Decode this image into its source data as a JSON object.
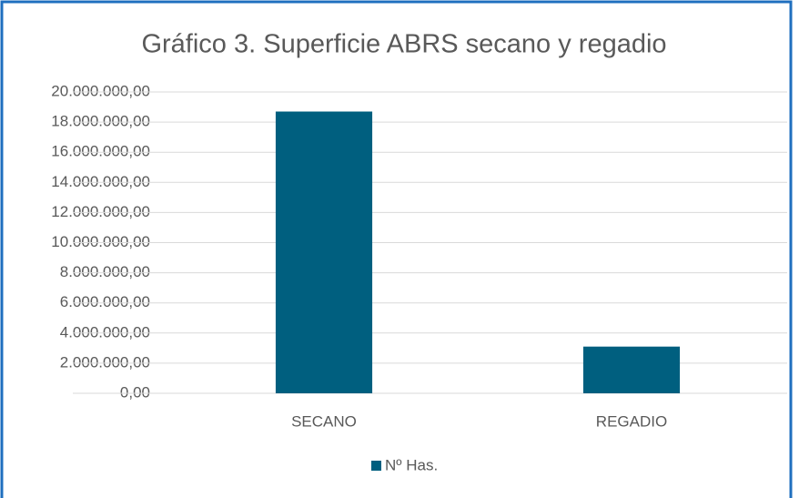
{
  "chart_data": {
    "type": "bar",
    "title": "Gráfico 3. Superficie ABRS secano y regadio",
    "categories": [
      "SECANO",
      "REGADIO"
    ],
    "series": [
      {
        "name": "Nº Has.",
        "color": "#005f7f",
        "values": [
          18700000,
          3100000
        ]
      }
    ],
    "ylim": [
      0,
      20000000
    ],
    "yticks": [
      {
        "value": 0,
        "label": "0,00"
      },
      {
        "value": 2000000,
        "label": "2.000.000,00"
      },
      {
        "value": 4000000,
        "label": "4.000.000,00"
      },
      {
        "value": 6000000,
        "label": "6.000.000,00"
      },
      {
        "value": 8000000,
        "label": "8.000.000,00"
      },
      {
        "value": 10000000,
        "label": "10.000.000,00"
      },
      {
        "value": 12000000,
        "label": "12.000.000,00"
      },
      {
        "value": 14000000,
        "label": "14.000.000,00"
      },
      {
        "value": 16000000,
        "label": "16.000.000,00"
      },
      {
        "value": 18000000,
        "label": "18.000.000,00"
      },
      {
        "value": 20000000,
        "label": "20.000.000,00"
      }
    ],
    "grid": true,
    "legend": "bottom"
  }
}
